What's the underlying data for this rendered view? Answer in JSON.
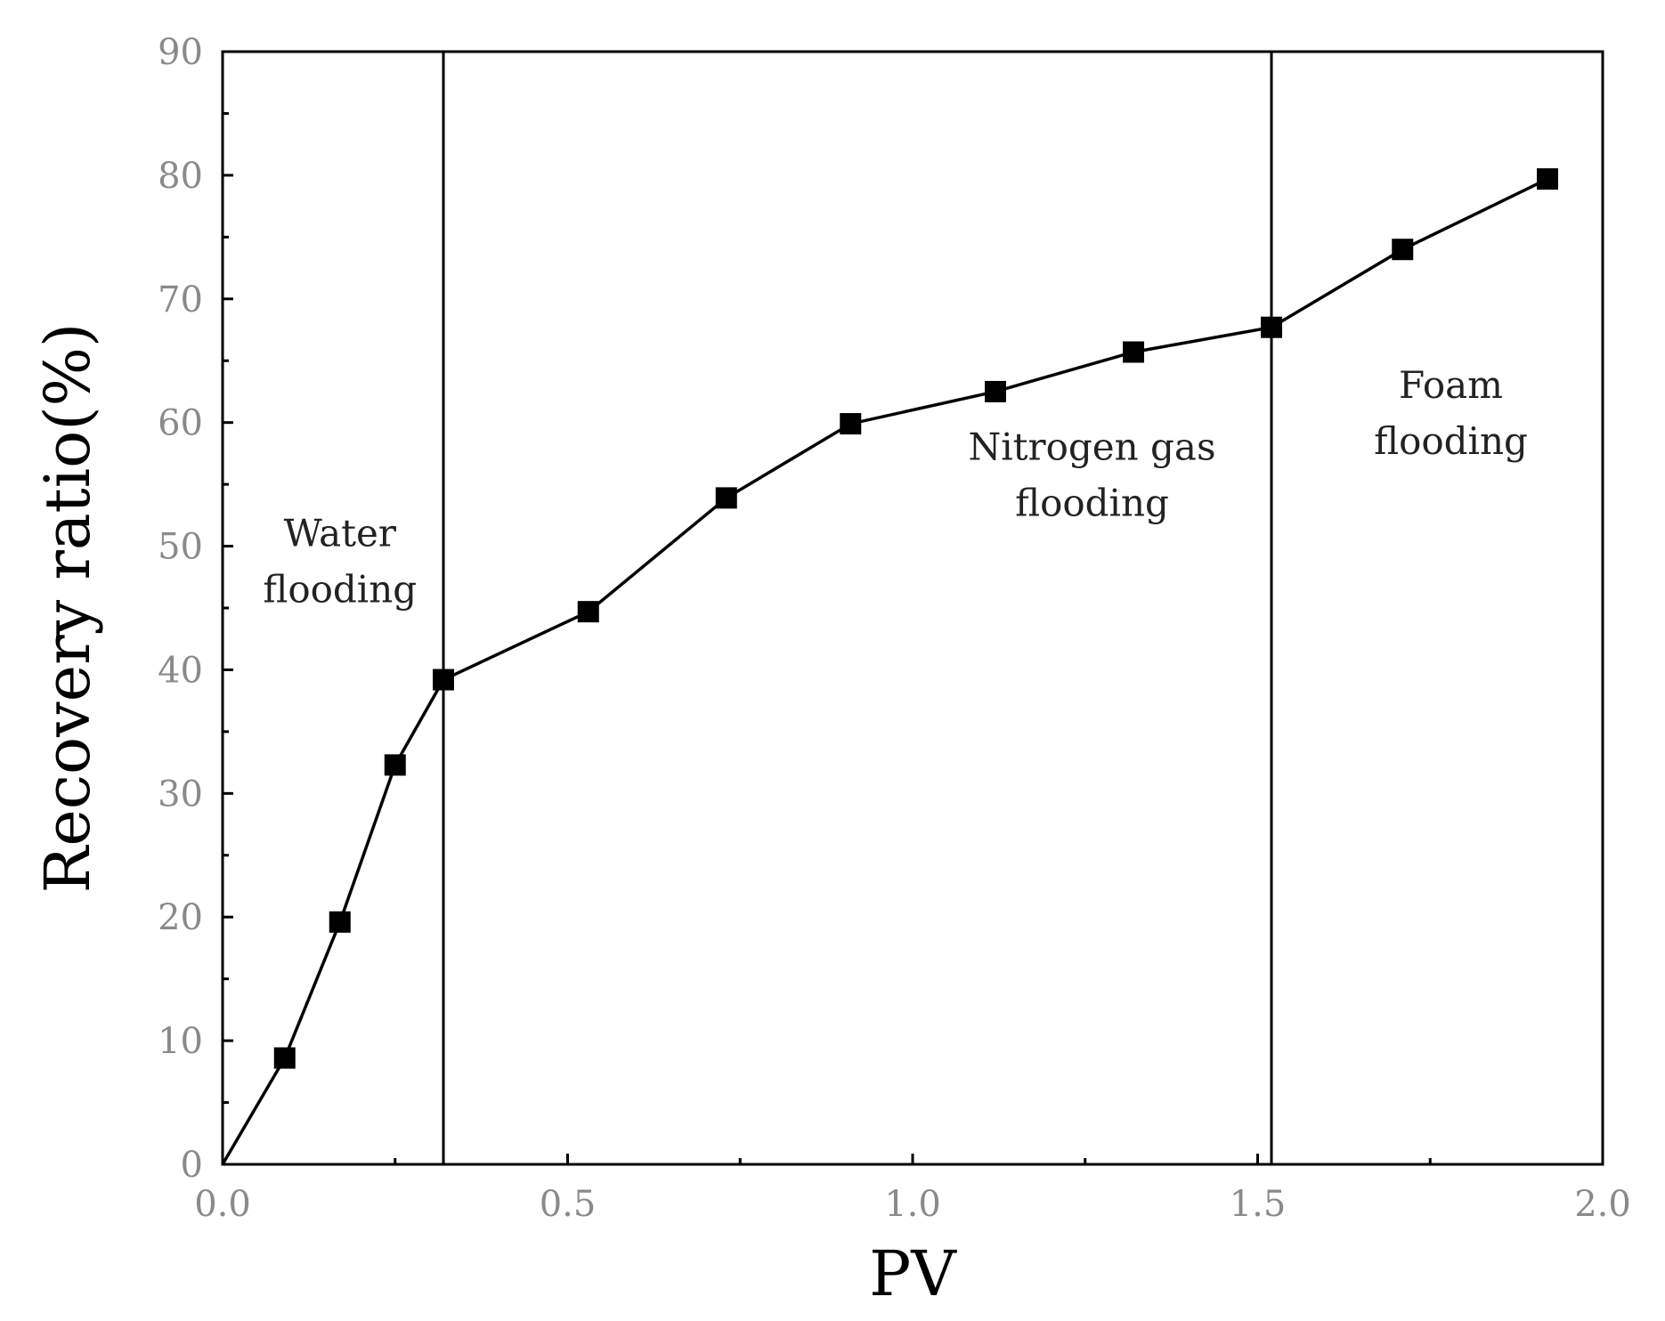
{
  "chart_data": {
    "type": "line",
    "title": "",
    "xlabel": "PV",
    "ylabel": "Recovery ratio(%)",
    "xlim": [
      0.0,
      2.0
    ],
    "ylim": [
      0,
      90
    ],
    "x_ticks": [
      0.0,
      0.5,
      1.0,
      1.5,
      2.0
    ],
    "x_tick_labels": [
      "0.0",
      "0.5",
      "1.0",
      "1.5",
      "2.0"
    ],
    "y_ticks": [
      0,
      10,
      20,
      30,
      40,
      50,
      60,
      70,
      80,
      90
    ],
    "y_tick_labels": [
      "0",
      "10",
      "20",
      "30",
      "40",
      "50",
      "60",
      "70",
      "80",
      "90"
    ],
    "grid": false,
    "marker": "square",
    "series": [
      {
        "x": [
          0.0,
          0.09,
          0.17,
          0.25,
          0.32,
          0.53,
          0.73,
          0.91,
          1.12,
          1.32,
          1.52,
          1.71,
          1.92
        ],
        "values": [
          0,
          8.6,
          19.6,
          32.3,
          39.2,
          44.7,
          53.9,
          59.9,
          62.5,
          65.7,
          67.7,
          74.0,
          79.7
        ]
      }
    ],
    "phase_dividers": [
      0.32,
      1.52
    ],
    "annotations": [
      {
        "lines": [
          "Water",
          "flooding"
        ],
        "x": 0.17,
        "y": 50
      },
      {
        "lines": [
          "Nitrogen gas",
          "flooding"
        ],
        "x": 1.26,
        "y": 57
      },
      {
        "lines": [
          "Foam",
          "flooding"
        ],
        "x": 1.78,
        "y": 62
      }
    ]
  }
}
